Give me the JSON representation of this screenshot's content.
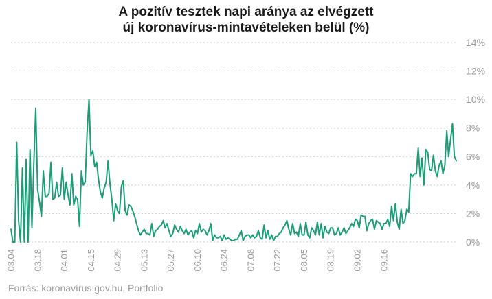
{
  "title_line1": "A pozitív tesztek napi aránya az elvégzett",
  "title_line2": "új koronavírus-mintavételeken belül (%)",
  "source": "Forrás: koronavírus.gov.hu, Portfolio",
  "colors": {
    "line": "#1a9e77",
    "grid": "#c8c8c8",
    "tick_label": "#9a9a9a",
    "title": "#1a1a1a"
  },
  "chart_data": {
    "type": "line",
    "title": "A pozitív tesztek napi aránya az elvégzett új koronavírus-mintavételeken belül (%)",
    "xlabel": "",
    "ylabel": "",
    "y_axis_side": "right",
    "ylim": [
      0,
      14
    ],
    "y_ticks": [
      0,
      2,
      4,
      6,
      8,
      10,
      12,
      14
    ],
    "y_tick_labels": [
      "0%",
      "2%",
      "4%",
      "6%",
      "8%",
      "10%",
      "12%",
      "14%"
    ],
    "grid": "horizontal dashed",
    "x_tick_labels": [
      "03.04",
      "03.18",
      "04.01",
      "04.15",
      "04.29",
      "05.13",
      "05.27",
      "06.10",
      "06.24",
      "07.08",
      "07.22",
      "08.05",
      "08.19",
      "09.02",
      "09.16"
    ],
    "x_tick_index": [
      0,
      14,
      28,
      42,
      56,
      70,
      84,
      98,
      112,
      126,
      140,
      154,
      168,
      182,
      196
    ],
    "series": [
      {
        "values": [
          0.9,
          0.0,
          0.0,
          7.0,
          1.5,
          0.0,
          5.2,
          0.0,
          5.8,
          0.0,
          6.5,
          1.0,
          5.5,
          9.4,
          3.7,
          2.8,
          1.8,
          5.0,
          3.2,
          3.2,
          3.4,
          5.6,
          3.0,
          3.1,
          4.2,
          3.2,
          3.3,
          5.2,
          3.0,
          4.2,
          3.3,
          2.6,
          4.8,
          2.6,
          3.2,
          3.0,
          1.1,
          5.0,
          4.0,
          4.2,
          7.7,
          10.0,
          6.1,
          6.4,
          5.3,
          5.6,
          4.4,
          3.5,
          3.1,
          3.8,
          4.2,
          5.7,
          4.1,
          3.0,
          1.5,
          2.7,
          2.2,
          2.0,
          3.9,
          4.3,
          2.2,
          1.9,
          2.6,
          2.5,
          2.2,
          1.8,
          1.3,
          0.8,
          0.5,
          0.7,
          0.9,
          0.6,
          0.6,
          0.5,
          1.3,
          0.4,
          0.8,
          0.9,
          1.1,
          1.2,
          1.5,
          1.0,
          1.3,
          0.8,
          0.4,
          0.6,
          1.2,
          0.9,
          0.7,
          1.1,
          0.8,
          0.6,
          0.9,
          0.5,
          0.7,
          0.8,
          0.3,
          0.8,
          0.6,
          1.3,
          0.7,
          0.9,
          0.8,
          0.5,
          0.8,
          1.3,
          0.1,
          0.5,
          0.3,
          0.3,
          0.4,
          0.1,
          0.5,
          0.2,
          0.3,
          0.2,
          0.1,
          0.1,
          0.2,
          0.2,
          0.5,
          0.8,
          0.1,
          0.4,
          0.5,
          0.5,
          0.3,
          0.5,
          0.3,
          0.4,
          0.8,
          0.3,
          0.2,
          1.2,
          0.3,
          0.8,
          0.2,
          0.5,
          0.1,
          0.4,
          0.4,
          0.6,
          0.7,
          1.0,
          1.2,
          1.5,
          0.9,
          0.5,
          1.3,
          0.6,
          0.7,
          0.4,
          1.3,
          0.5,
          0.5,
          1.4,
          0.5,
          0.3,
          1.0,
          0.8,
          0.5,
          1.4,
          0.5,
          1.3,
          0.3,
          1.1,
          0.7,
          0.6,
          1.0,
          1.0,
          0.5,
          0.6,
          1.0,
          0.5,
          0.7,
          1.0,
          0.6,
          0.8,
          1.0,
          1.3,
          1.1,
          1.6,
          1.5,
          1.0,
          1.9,
          1.8,
          1.8,
          0.8,
          1.3,
          1.5,
          1.6,
          0.9,
          1.5,
          1.4,
          1.3,
          0.9,
          1.3,
          1.3,
          1.6,
          1.1,
          2.5,
          1.5,
          2.7,
          1.4,
          0.9,
          2.3,
          1.3,
          1.5,
          2.3,
          2.1,
          4.8,
          4.6,
          4.8,
          4.8,
          6.6,
          4.6,
          5.9,
          4.0,
          6.5,
          6.3,
          5.1,
          5.0,
          6.1,
          5.0,
          4.6,
          5.4,
          5.7,
          4.8,
          5.4,
          7.8,
          6.0,
          7.2,
          8.3,
          6.0,
          5.7
        ]
      }
    ]
  }
}
